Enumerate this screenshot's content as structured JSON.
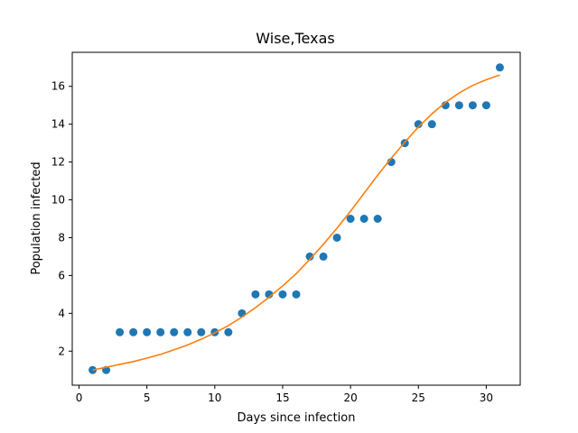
{
  "chart_data": {
    "type": "scatter",
    "title": "Wise,Texas",
    "xlabel": "Days since infection",
    "ylabel": "Population infected",
    "xlim": [
      -0.5,
      32.5
    ],
    "ylim": [
      0.2,
      17.8
    ],
    "x_ticks": [
      0,
      5,
      10,
      15,
      20,
      25,
      30
    ],
    "y_ticks": [
      2,
      4,
      6,
      8,
      10,
      12,
      14,
      16
    ],
    "grid": false,
    "colors": {
      "points": "#1f77b4",
      "fit": "#ff7f0e"
    },
    "series": [
      {
        "kind": "scatter",
        "x": [
          1,
          2,
          3,
          4,
          5,
          6,
          7,
          8,
          9,
          10,
          11,
          12,
          13,
          14,
          15,
          16,
          17,
          18,
          19,
          20,
          21,
          22,
          23,
          24,
          25,
          26,
          27,
          28,
          29,
          30,
          31
        ],
        "y": [
          1,
          1,
          3,
          3,
          3,
          3,
          3,
          3,
          3,
          3,
          3,
          4,
          5,
          5,
          5,
          5,
          7,
          7,
          8,
          9,
          9,
          9,
          12,
          13,
          14,
          14,
          15,
          15,
          15,
          15,
          17
        ]
      },
      {
        "kind": "line",
        "x": [
          1,
          2,
          3,
          4,
          5,
          6,
          7,
          8,
          9,
          10,
          11,
          12,
          13,
          14,
          15,
          16,
          17,
          18,
          19,
          20,
          21,
          22,
          23,
          24,
          25,
          26,
          27,
          28,
          29,
          30,
          31
        ],
        "y": [
          1.0,
          1.15,
          1.3,
          1.45,
          1.63,
          1.83,
          2.07,
          2.33,
          2.63,
          2.97,
          3.35,
          3.8,
          4.3,
          4.85,
          5.45,
          6.1,
          6.85,
          7.65,
          8.5,
          9.4,
          10.35,
          11.3,
          12.2,
          13.05,
          13.85,
          14.55,
          15.15,
          15.65,
          16.05,
          16.35,
          16.6
        ]
      }
    ]
  }
}
